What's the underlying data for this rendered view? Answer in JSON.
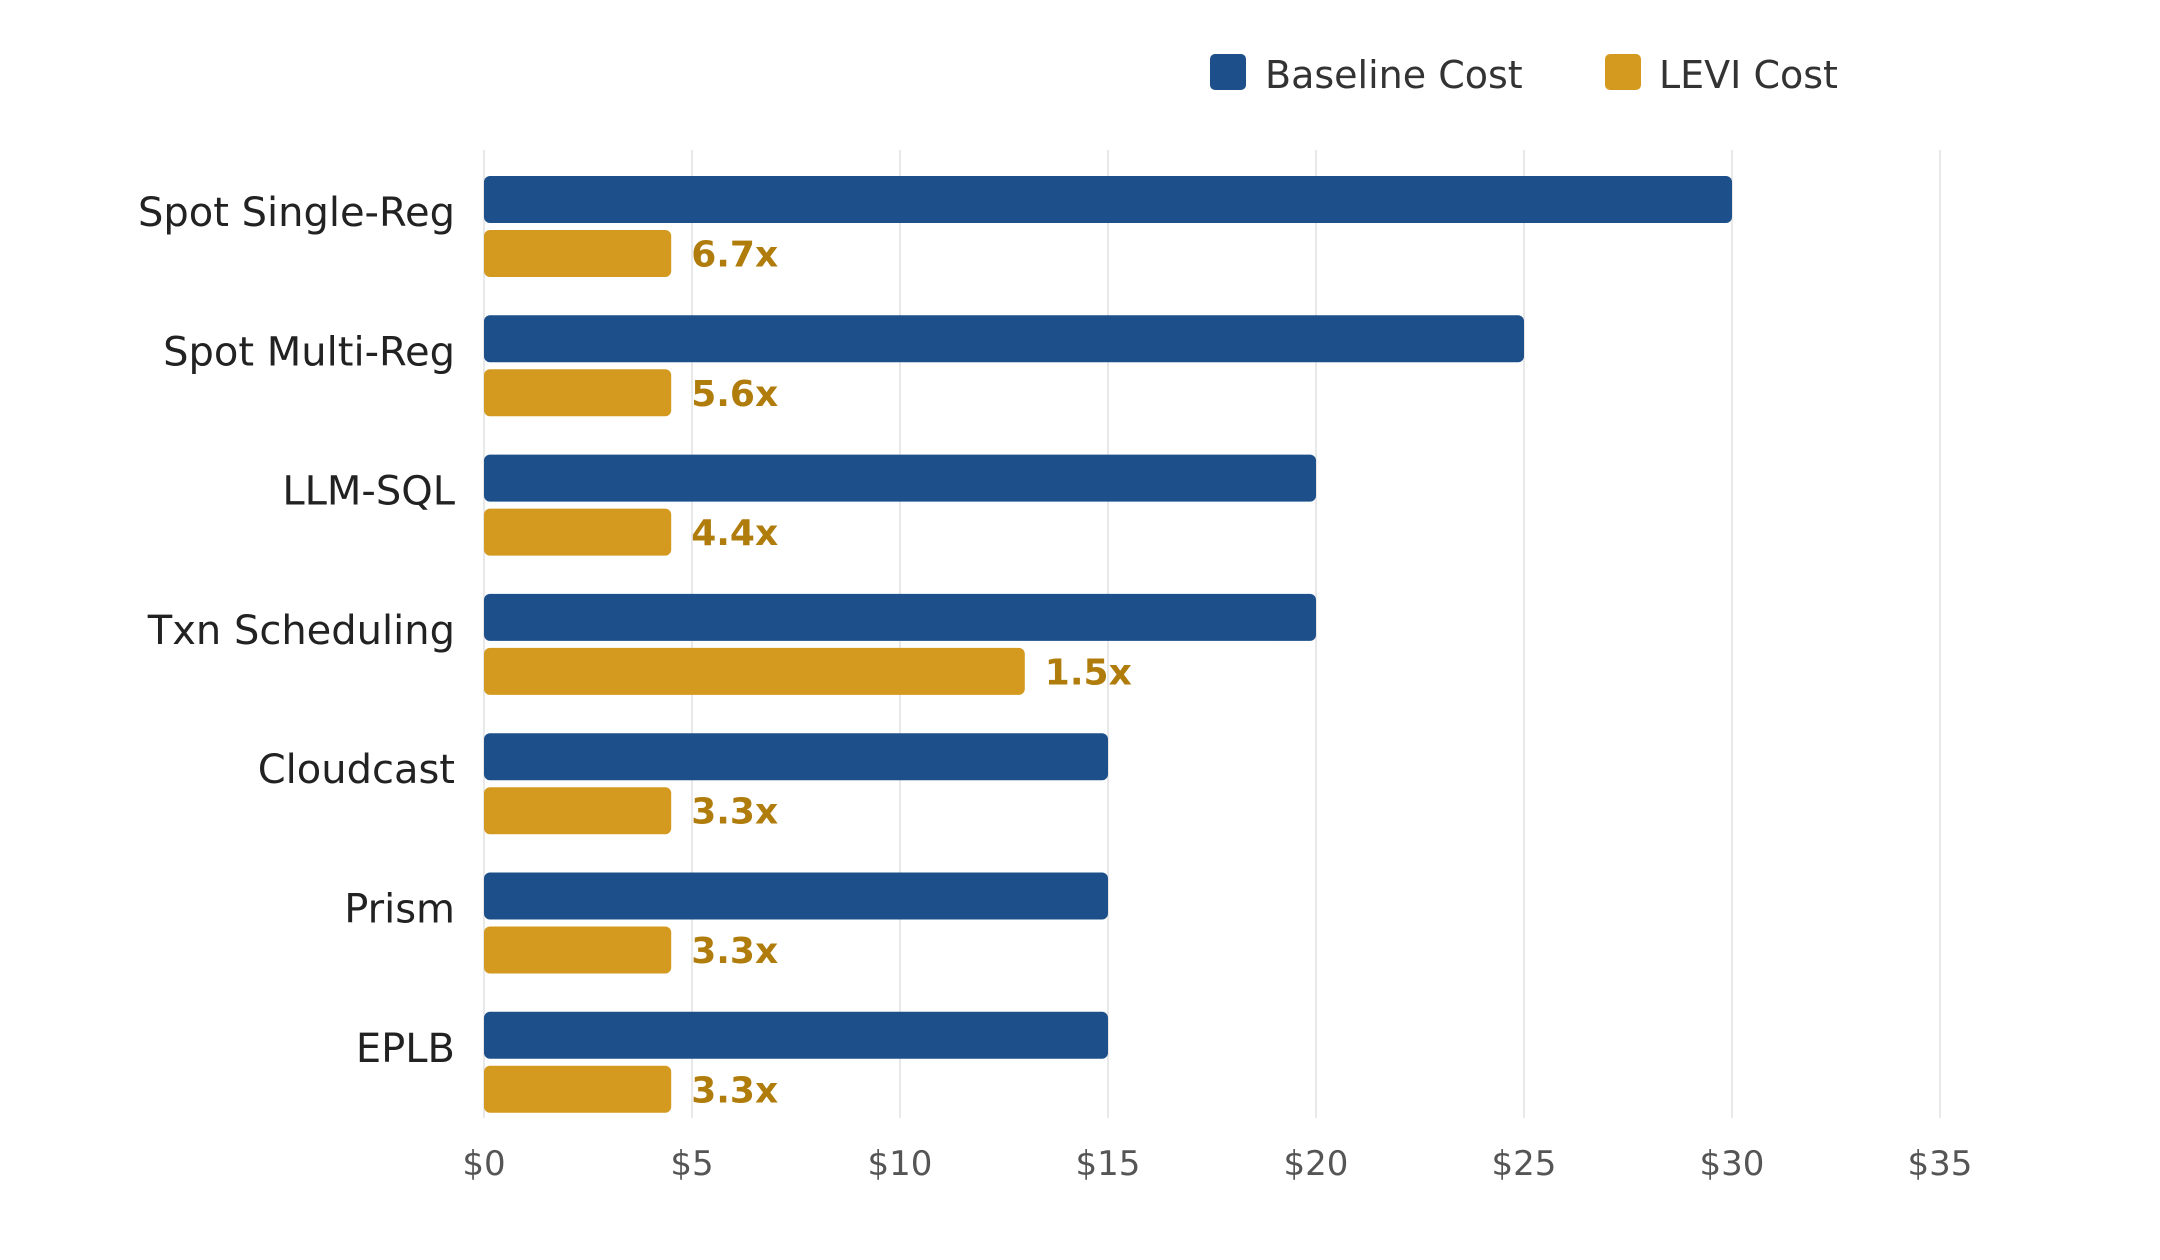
{
  "chart_data": {
    "type": "bar",
    "orientation": "horizontal",
    "title": "",
    "xlabel": "",
    "ylabel": "",
    "xlim": [
      0,
      35
    ],
    "x_ticks": [
      0,
      5,
      10,
      15,
      20,
      25,
      30,
      35
    ],
    "x_tick_labels": [
      "$0",
      "$5",
      "$10",
      "$15",
      "$20",
      "$25",
      "$30",
      "$35"
    ],
    "grid": true,
    "legend_position": "top-right",
    "categories": [
      "Spot Single-Reg",
      "Spot Multi-Reg",
      "LLM-SQL",
      "Txn Scheduling",
      "Cloudcast",
      "Prism",
      "EPLB"
    ],
    "series": [
      {
        "name": "Baseline Cost",
        "color": "#1d4f8a",
        "values": [
          30,
          25,
          20,
          20,
          15,
          15,
          15
        ]
      },
      {
        "name": "LEVI Cost",
        "color": "#d49a1f",
        "values": [
          4.5,
          4.5,
          4.5,
          13,
          4.5,
          4.5,
          4.5
        ],
        "annotations": [
          "6.7x",
          "5.6x",
          "4.4x",
          "1.5x",
          "3.3x",
          "3.3x",
          "3.3x"
        ],
        "annotation_color": "#b07c0c"
      }
    ]
  }
}
